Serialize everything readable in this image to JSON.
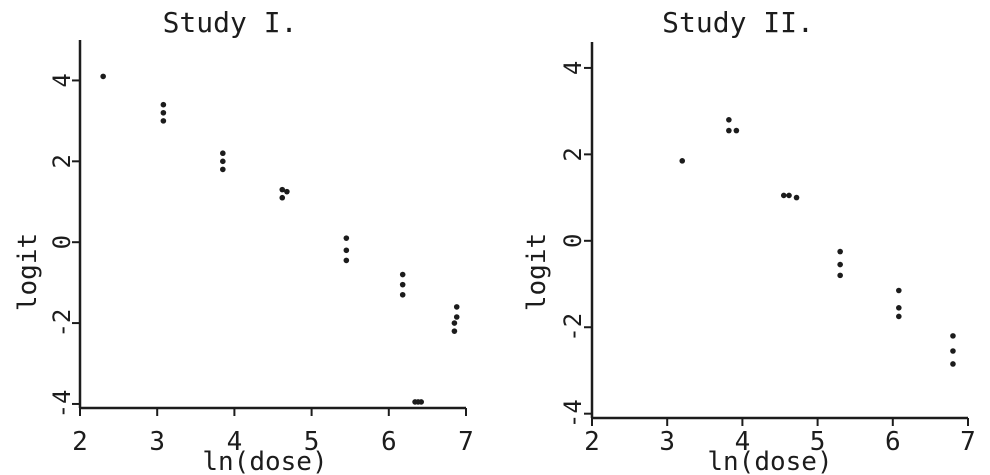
{
  "chart_data": [
    {
      "type": "scatter",
      "title": "Study I.",
      "xlabel": "ln(dose)",
      "ylabel": "logit",
      "xlim": [
        2,
        7
      ],
      "ylim": [
        -4.1,
        5.0
      ],
      "xticks": [
        "2",
        "3",
        "4",
        "5",
        "6",
        "7"
      ],
      "yticks": [
        "-4",
        "-2",
        "0",
        "2",
        "4"
      ],
      "grid": false,
      "points": [
        {
          "x": 2.3,
          "y": 4.1
        },
        {
          "x": 3.08,
          "y": 3.4
        },
        {
          "x": 3.08,
          "y": 3.2
        },
        {
          "x": 3.08,
          "y": 3.0
        },
        {
          "x": 3.85,
          "y": 2.2
        },
        {
          "x": 3.85,
          "y": 2.0
        },
        {
          "x": 3.85,
          "y": 1.8
        },
        {
          "x": 4.62,
          "y": 1.3
        },
        {
          "x": 4.68,
          "y": 1.25
        },
        {
          "x": 4.62,
          "y": 1.1
        },
        {
          "x": 5.45,
          "y": 0.1
        },
        {
          "x": 5.45,
          "y": -0.2
        },
        {
          "x": 5.45,
          "y": -0.45
        },
        {
          "x": 6.18,
          "y": -0.8
        },
        {
          "x": 6.18,
          "y": -1.05
        },
        {
          "x": 6.18,
          "y": -1.3
        },
        {
          "x": 6.88,
          "y": -1.6
        },
        {
          "x": 6.88,
          "y": -1.85
        },
        {
          "x": 6.85,
          "y": -2.0
        },
        {
          "x": 6.85,
          "y": -2.2
        },
        {
          "x": 6.34,
          "y": -3.95
        },
        {
          "x": 6.38,
          "y": -3.95
        },
        {
          "x": 6.42,
          "y": -3.95
        }
      ]
    },
    {
      "type": "scatter",
      "title": "Study II.",
      "xlabel": "ln(dose)",
      "ylabel": "logit",
      "xlim": [
        2,
        7
      ],
      "ylim": [
        -4.1,
        4.6
      ],
      "xticks": [
        "2",
        "3",
        "4",
        "5",
        "6",
        "7"
      ],
      "yticks": [
        "-4",
        "-2",
        "0",
        "2",
        "4"
      ],
      "grid": false,
      "points": [
        {
          "x": 3.2,
          "y": 1.85
        },
        {
          "x": 3.82,
          "y": 2.8
        },
        {
          "x": 3.82,
          "y": 2.55
        },
        {
          "x": 3.92,
          "y": 2.55
        },
        {
          "x": 4.55,
          "y": 1.05
        },
        {
          "x": 4.62,
          "y": 1.05
        },
        {
          "x": 4.72,
          "y": 1.0
        },
        {
          "x": 5.3,
          "y": -0.25
        },
        {
          "x": 5.3,
          "y": -0.55
        },
        {
          "x": 5.3,
          "y": -0.8
        },
        {
          "x": 6.08,
          "y": -1.15
        },
        {
          "x": 6.08,
          "y": -1.55
        },
        {
          "x": 6.08,
          "y": -1.75
        },
        {
          "x": 6.8,
          "y": -2.2
        },
        {
          "x": 6.8,
          "y": -2.55
        },
        {
          "x": 6.8,
          "y": -2.85
        }
      ]
    }
  ]
}
